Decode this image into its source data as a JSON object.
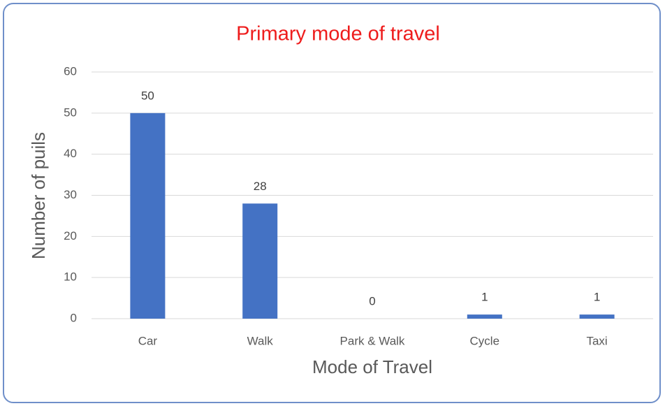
{
  "chart_data": {
    "type": "bar",
    "title": "Primary mode of travel",
    "x_label": "Mode of Travel",
    "y_label": "Number of puils",
    "categories": [
      "Car",
      "Walk",
      "Park & Walk",
      "Cycle",
      "Taxi"
    ],
    "values": [
      50,
      28,
      0,
      1,
      1
    ],
    "color": "#4472c4",
    "ylim": [
      0,
      60
    ],
    "yticks": [
      0,
      10,
      20,
      30,
      40,
      50,
      60
    ],
    "grid": true,
    "data_labels": true
  }
}
